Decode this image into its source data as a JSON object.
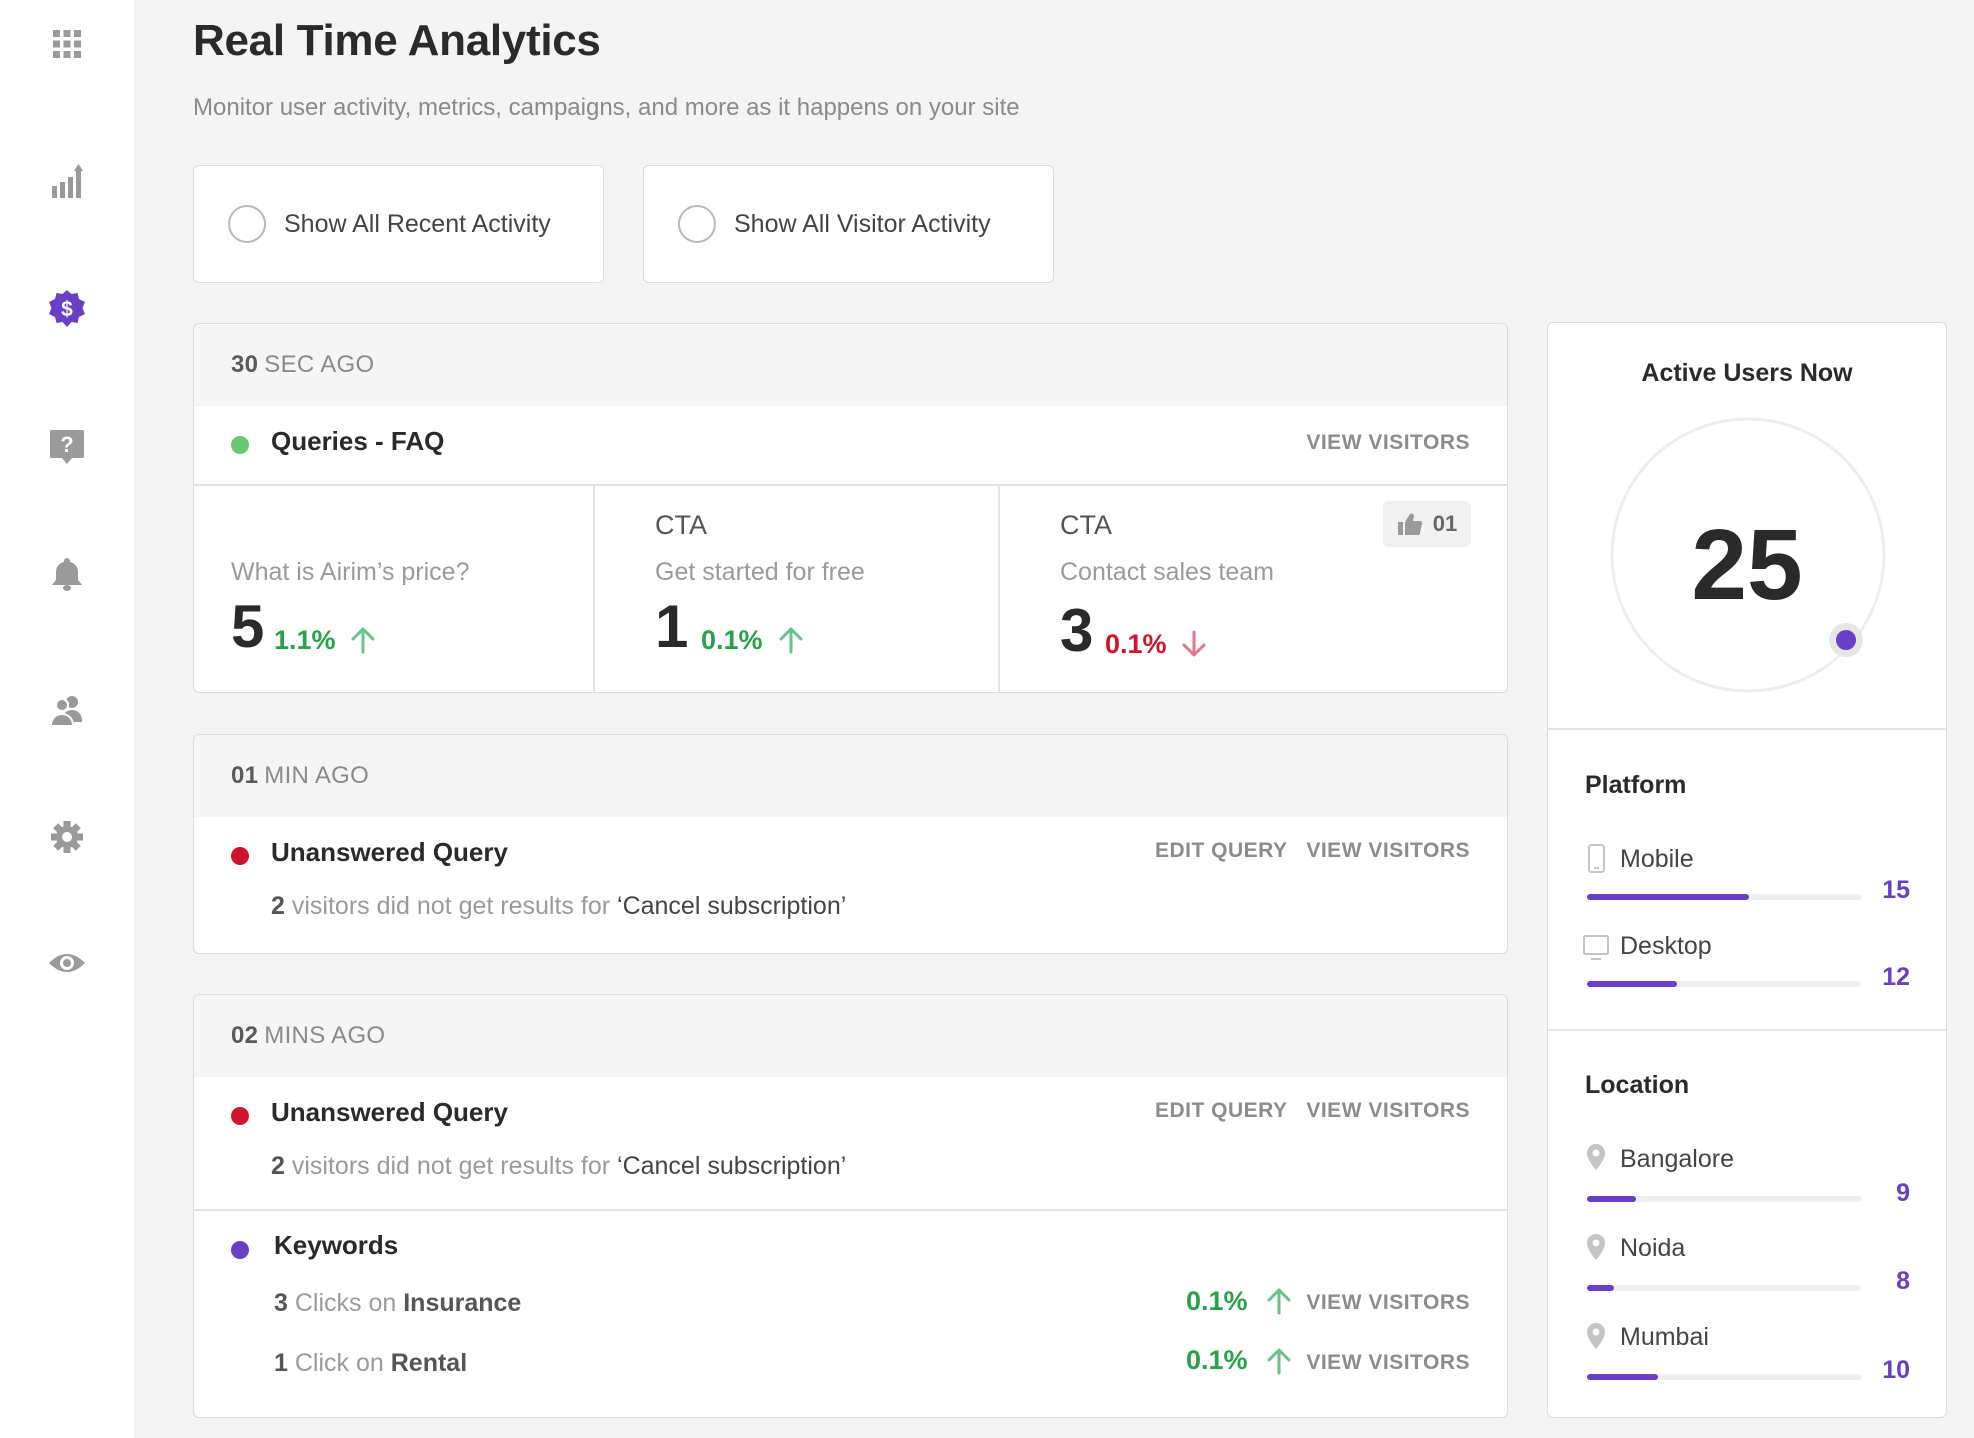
{
  "header": {
    "title": "Real Time Analytics",
    "subtitle": "Monitor user activity, metrics, campaigns, and more as it happens on your site"
  },
  "filters": [
    {
      "label": "Show All Recent Activity"
    },
    {
      "label": "Show All Visitor Activity"
    }
  ],
  "colors": {
    "accent": "#6a3ec7",
    "green": "#27a347",
    "red": "#d0142c",
    "status_green": "#6cc772"
  },
  "sidebar": {
    "items": [
      {
        "icon": "apps-grid-icon",
        "active": false
      },
      {
        "icon": "bar-chart-icon",
        "active": false
      },
      {
        "icon": "dollar-badge-icon",
        "active": true
      },
      {
        "icon": "help-icon",
        "active": false
      },
      {
        "icon": "bell-icon",
        "active": false
      },
      {
        "icon": "users-icon",
        "active": false
      },
      {
        "icon": "gear-icon",
        "active": false
      },
      {
        "icon": "eye-icon",
        "active": false
      }
    ]
  },
  "feed": {
    "card1": {
      "time_num": "30",
      "time_unit": "SEC AGO",
      "title": "Queries - FAQ",
      "view_visitors": "VIEW VISITORS",
      "metrics": [
        {
          "caption": "",
          "sub": "What is Airim’s price?",
          "value": "5",
          "pct": "1.1%",
          "trend": "up"
        },
        {
          "caption": "CTA",
          "sub": "Get started for free",
          "value": "1",
          "pct": "0.1%",
          "trend": "up"
        },
        {
          "caption": "CTA",
          "sub": "Contact sales team",
          "value": "3",
          "pct": "0.1%",
          "trend": "down",
          "likes": "01"
        }
      ]
    },
    "card2": {
      "time_num": "01",
      "time_unit": "MIN AGO",
      "title": "Unanswered Query",
      "edit_query": "EDIT QUERY",
      "view_visitors": "VIEW VISITORS",
      "count": "2",
      "desc": "visitors did not get results for",
      "query": "‘Cancel subscription’"
    },
    "card3": {
      "time_num": "02",
      "time_unit": "MINS AGO",
      "title": "Unanswered Query",
      "edit_query": "EDIT QUERY",
      "view_visitors": "VIEW VISITORS",
      "count": "2",
      "desc": "visitors did not get results for",
      "query": "‘Cancel subscription’",
      "keywords": {
        "title": "Keywords",
        "rows": [
          {
            "count": "3",
            "text": "Clicks on",
            "keyword": "Insurance",
            "pct": "0.1%",
            "link": "VIEW VISITORS"
          },
          {
            "count": "1",
            "text": "Click on",
            "keyword": "Rental",
            "pct": "0.1%",
            "link": "VIEW VISITORS"
          }
        ]
      }
    }
  },
  "panel": {
    "title": "Active Users Now",
    "active_users": "25",
    "platform": {
      "title": "Platform",
      "items": [
        {
          "label": "Mobile",
          "value": "15",
          "fraction": 0.59
        },
        {
          "label": "Desktop",
          "value": "12",
          "fraction": 0.33
        }
      ]
    },
    "location": {
      "title": "Location",
      "items": [
        {
          "label": "Bangalore",
          "value": "9",
          "fraction": 0.18
        },
        {
          "label": "Noida",
          "value": "8",
          "fraction": 0.1
        },
        {
          "label": "Mumbai",
          "value": "10",
          "fraction": 0.26
        }
      ]
    }
  }
}
